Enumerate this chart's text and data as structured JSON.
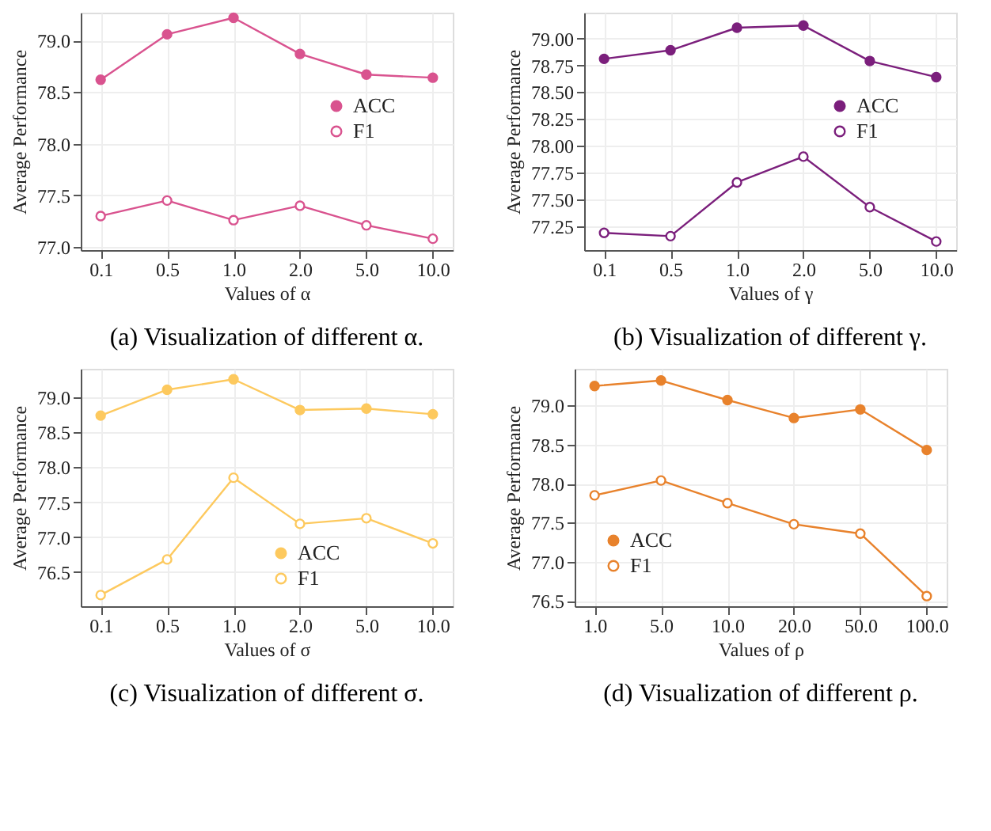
{
  "chart_data": [
    {
      "type": "line",
      "xlabel": "Values of α",
      "ylabel": "Average Performance",
      "annotations": [
        "(a) Visualization of different α."
      ],
      "categories": [
        "0.1",
        "0.5",
        "1.0",
        "2.0",
        "5.0",
        "10.0"
      ],
      "series": [
        {
          "name": "ACC",
          "color": "#d9538f",
          "values": [
            78.62,
            79.06,
            79.22,
            78.87,
            78.67,
            78.64
          ]
        },
        {
          "name": "F1",
          "color": "#d9538f",
          "values": [
            77.3,
            77.45,
            77.26,
            77.4,
            77.21,
            77.08
          ]
        }
      ],
      "ylim": [
        76.97,
        79.27
      ],
      "yticks": [
        {
          "value": 77,
          "label": "77.0"
        },
        {
          "value": 77.5,
          "label": "77.5"
        },
        {
          "value": 78,
          "label": "78.0"
        },
        {
          "value": 78.5,
          "label": "78.5"
        },
        {
          "value": 79,
          "label": "79.0"
        }
      ],
      "grid": true,
      "legend": "right",
      "marker": "circle",
      "line_style": "solid"
    },
    {
      "type": "line",
      "xlabel": "Values of γ",
      "ylabel": "Average Performance",
      "annotations": [
        "(b) Visualization of different γ."
      ],
      "categories": [
        "0.1",
        "0.5",
        "1.0",
        "2.0",
        "5.0",
        "10.0"
      ],
      "series": [
        {
          "name": "ACC",
          "color": "#7b1f7c",
          "values": [
            78.81,
            78.89,
            79.1,
            79.12,
            78.79,
            78.64
          ]
        },
        {
          "name": "F1",
          "color": "#7b1f7c",
          "values": [
            77.19,
            77.16,
            77.66,
            77.9,
            77.43,
            77.11
          ]
        }
      ],
      "ylim": [
        77.03,
        79.24
      ],
      "yticks": [
        {
          "value": 77.25,
          "label": "77.25"
        },
        {
          "value": 77.5,
          "label": "77.50"
        },
        {
          "value": 77.75,
          "label": "77.75"
        },
        {
          "value": 78,
          "label": "78.00"
        },
        {
          "value": 78.25,
          "label": "78.25"
        },
        {
          "value": 78.5,
          "label": "78.50"
        },
        {
          "value": 78.75,
          "label": "78.75"
        },
        {
          "value": 79,
          "label": "79.00"
        }
      ],
      "grid": true,
      "legend": "right",
      "marker": "circle",
      "line_style": "solid"
    },
    {
      "type": "line",
      "xlabel": "Values of σ",
      "ylabel": "Average Performance",
      "annotations": [
        "(c) Visualization of different σ."
      ],
      "categories": [
        "0.1",
        "0.5",
        "1.0",
        "2.0",
        "5.0",
        "10.0"
      ],
      "series": [
        {
          "name": "ACC",
          "color": "#fdc95e",
          "values": [
            78.74,
            79.11,
            79.26,
            78.82,
            78.84,
            78.76
          ]
        },
        {
          "name": "F1",
          "color": "#fdc95e",
          "values": [
            76.17,
            76.68,
            77.85,
            77.19,
            77.27,
            76.91
          ]
        }
      ],
      "ylim": [
        76.01,
        79.41
      ],
      "yticks": [
        {
          "value": 76.5,
          "label": "76.5"
        },
        {
          "value": 77,
          "label": "77.0"
        },
        {
          "value": 77.5,
          "label": "77.5"
        },
        {
          "value": 78,
          "label": "78.0"
        },
        {
          "value": 78.5,
          "label": "78.5"
        },
        {
          "value": 79,
          "label": "79.0"
        }
      ],
      "grid": true,
      "legend": "bottom right",
      "marker": "circle",
      "line_style": "solid"
    },
    {
      "type": "line",
      "xlabel": "Values of ρ",
      "ylabel": "Average Performance",
      "annotations": [
        "(d) Visualization of different ρ."
      ],
      "categories": [
        "1.0",
        "5.0",
        "10.0",
        "20.0",
        "50.0",
        "100.0"
      ],
      "series": [
        {
          "name": "ACC",
          "color": "#e8822c",
          "values": [
            79.25,
            79.32,
            79.07,
            78.84,
            78.95,
            78.43
          ]
        },
        {
          "name": "F1",
          "color": "#e8822c",
          "values": [
            77.85,
            78.04,
            77.75,
            77.48,
            77.36,
            76.56
          ]
        }
      ],
      "ylim": [
        76.43,
        79.47
      ],
      "yticks": [
        {
          "value": 76.5,
          "label": "76.5"
        },
        {
          "value": 77,
          "label": "77.0"
        },
        {
          "value": 77.5,
          "label": "77.5"
        },
        {
          "value": 78,
          "label": "78.0"
        },
        {
          "value": 78.5,
          "label": "78.5"
        },
        {
          "value": 79,
          "label": "79.0"
        }
      ],
      "grid": true,
      "legend": "bottom left",
      "marker": "circle",
      "line_style": "solid"
    }
  ]
}
